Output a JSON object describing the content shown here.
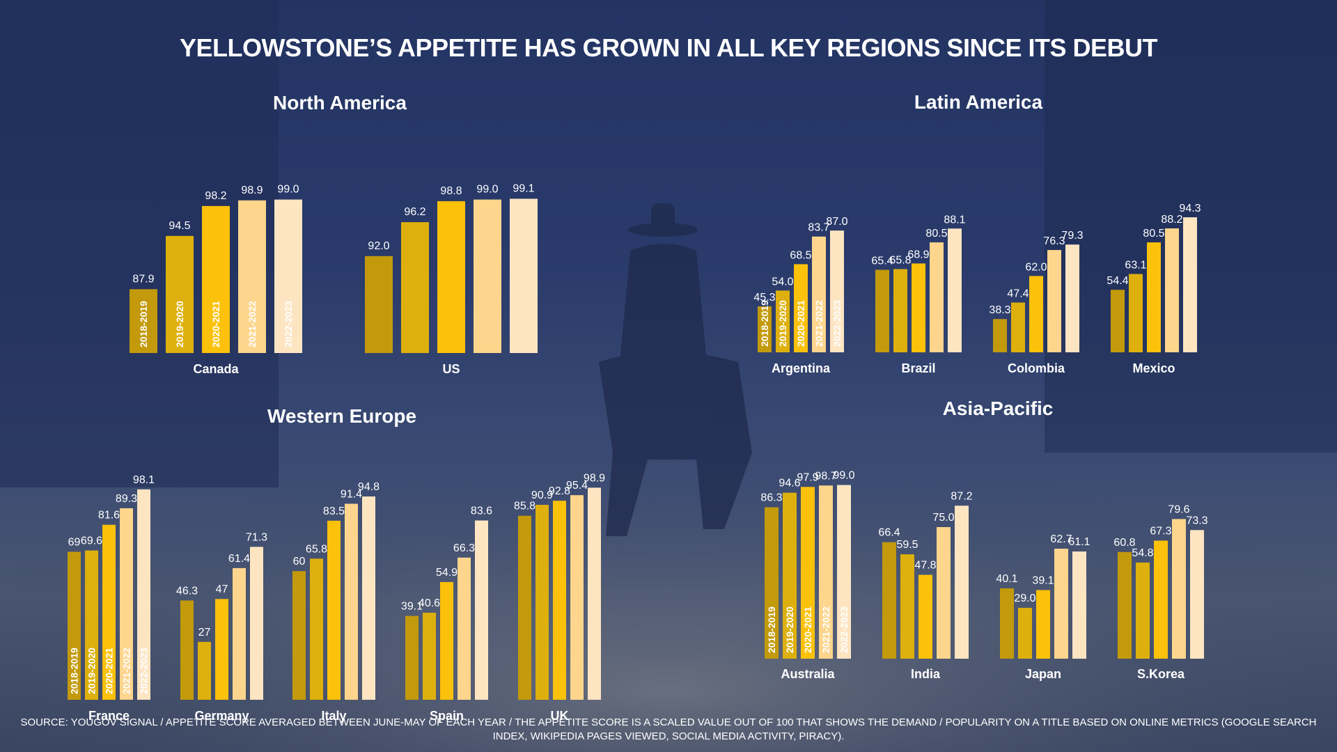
{
  "title": "YELLOWSTONE’S APPETITE HAS GROWN IN ALL KEY REGIONS SINCE ITS DEBUT",
  "source": "SOURCE: YOUGOV SIGNAL / APPETITE SCORE AVERAGED BETWEEN JUNE-MAY OF EACH YEAR / THE APPETITE SCORE IS A SCALED VALUE OUT OF 100 THAT SHOWS THE DEMAND / POPULARITY ON A TITLE BASED ON ONLINE METRICS (GOOGLE SEARCH INDEX, WIKIPEDIA PAGES VIEWED, SOCIAL MEDIA ACTIVITY, PIRACY).",
  "colors": [
    "#c39a0c",
    "#deb00d",
    "#fbc10b",
    "#fdd58c",
    "#fde5c2"
  ],
  "chart_data": [
    {
      "type": "bar",
      "title": "North America",
      "series_names": [
        "2018-2019",
        "2019-2020",
        "2020-2021",
        "2021-2022",
        "2022-2023"
      ],
      "ylim": [
        80,
        100
      ],
      "groups": [
        {
          "name": "Canada",
          "values": [
            87.9,
            94.5,
            98.2,
            98.9,
            99.0
          ],
          "labels": [
            "87.9",
            "94.5",
            "98.2",
            "98.9",
            "99.0"
          ]
        },
        {
          "name": "US",
          "values": [
            92.0,
            96.2,
            98.8,
            99.0,
            99.1
          ],
          "labels": [
            "92.0",
            "96.2",
            "98.8",
            "99.0",
            "99.1"
          ]
        }
      ]
    },
    {
      "type": "bar",
      "title": "Latin America",
      "series_names": [
        "2018-2019",
        "2019-2020",
        "2020-2021",
        "2021-2022",
        "2022-2023"
      ],
      "ylim": [
        20,
        100
      ],
      "groups": [
        {
          "name": "Argentina",
          "values": [
            45.3,
            54.0,
            68.5,
            83.7,
            87.0
          ],
          "labels": [
            "45.3",
            "54.0",
            "68.5",
            "83.7",
            "87.0"
          ]
        },
        {
          "name": "Brazil",
          "values": [
            65.4,
            65.8,
            68.9,
            80.5,
            88.1
          ],
          "labels": [
            "65.4",
            "65.8",
            "68.9",
            "80.5",
            "88.1"
          ]
        },
        {
          "name": "Colombia",
          "values": [
            38.3,
            47.4,
            62.0,
            76.3,
            79.3
          ],
          "labels": [
            "38.3",
            "47.4",
            "62.0",
            "76.3",
            "79.3"
          ]
        },
        {
          "name": "Mexico",
          "values": [
            54.4,
            63.1,
            80.5,
            88.2,
            94.3
          ],
          "labels": [
            "54.4",
            "63.1",
            "80.5",
            "88.2",
            "94.3"
          ]
        }
      ]
    },
    {
      "type": "bar",
      "title": "Western Europe",
      "series_names": [
        "2018-2019",
        "2019-2020",
        "2020-2021",
        "2021-2022",
        "2022-2023"
      ],
      "ylim": [
        0,
        100
      ],
      "groups": [
        {
          "name": "France",
          "values": [
            69,
            69.6,
            81.6,
            89.3,
            98.1
          ],
          "labels": [
            "69",
            "69.6",
            "81.6",
            "89.3",
            "98.1"
          ]
        },
        {
          "name": "Germany",
          "values": [
            46.3,
            27,
            47,
            61.4,
            71.3
          ],
          "labels": [
            "46.3",
            "27",
            "47",
            "61.4",
            "71.3"
          ]
        },
        {
          "name": "Italy",
          "values": [
            60,
            65.8,
            83.5,
            91.4,
            94.8
          ],
          "labels": [
            "60",
            "65.8",
            "83.5",
            "91.4",
            "94.8"
          ]
        },
        {
          "name": "Spain",
          "values": [
            39.1,
            40.6,
            54.9,
            66.3,
            83.6
          ],
          "labels": [
            "39.1",
            "40.6",
            "54.9",
            "66.3",
            "83.6"
          ]
        },
        {
          "name": "UK",
          "values": [
            85.8,
            90.9,
            92.8,
            95.4,
            98.9
          ],
          "labels": [
            "85.8",
            "90.9",
            "92.8",
            "95.4",
            "98.9"
          ]
        }
      ]
    },
    {
      "type": "bar",
      "title": "Asia-Pacific",
      "series_names": [
        "2018-2019",
        "2019-2020",
        "2020-2021",
        "2021-2022",
        "2022-2023"
      ],
      "ylim": [
        0,
        100
      ],
      "groups": [
        {
          "name": "Australia",
          "values": [
            86.3,
            94.6,
            97.9,
            98.7,
            99.0
          ],
          "labels": [
            "86.3",
            "94.6",
            "97.9",
            "98.7",
            "99.0"
          ]
        },
        {
          "name": "India",
          "values": [
            66.4,
            59.5,
            47.8,
            75.0,
            87.2
          ],
          "labels": [
            "66.4",
            "59.5",
            "47.8",
            "75.0",
            "87.2"
          ]
        },
        {
          "name": "Japan",
          "values": [
            40.1,
            29.0,
            39.1,
            62.7,
            61.1
          ],
          "labels": [
            "40.1",
            "29.0",
            "39.1",
            "62.7",
            "61.1"
          ]
        },
        {
          "name": "S.Korea",
          "values": [
            60.8,
            54.8,
            67.3,
            79.6,
            73.3
          ],
          "labels": [
            "60.8",
            "54.8",
            "67.3",
            "79.6",
            "73.3"
          ]
        }
      ]
    }
  ]
}
